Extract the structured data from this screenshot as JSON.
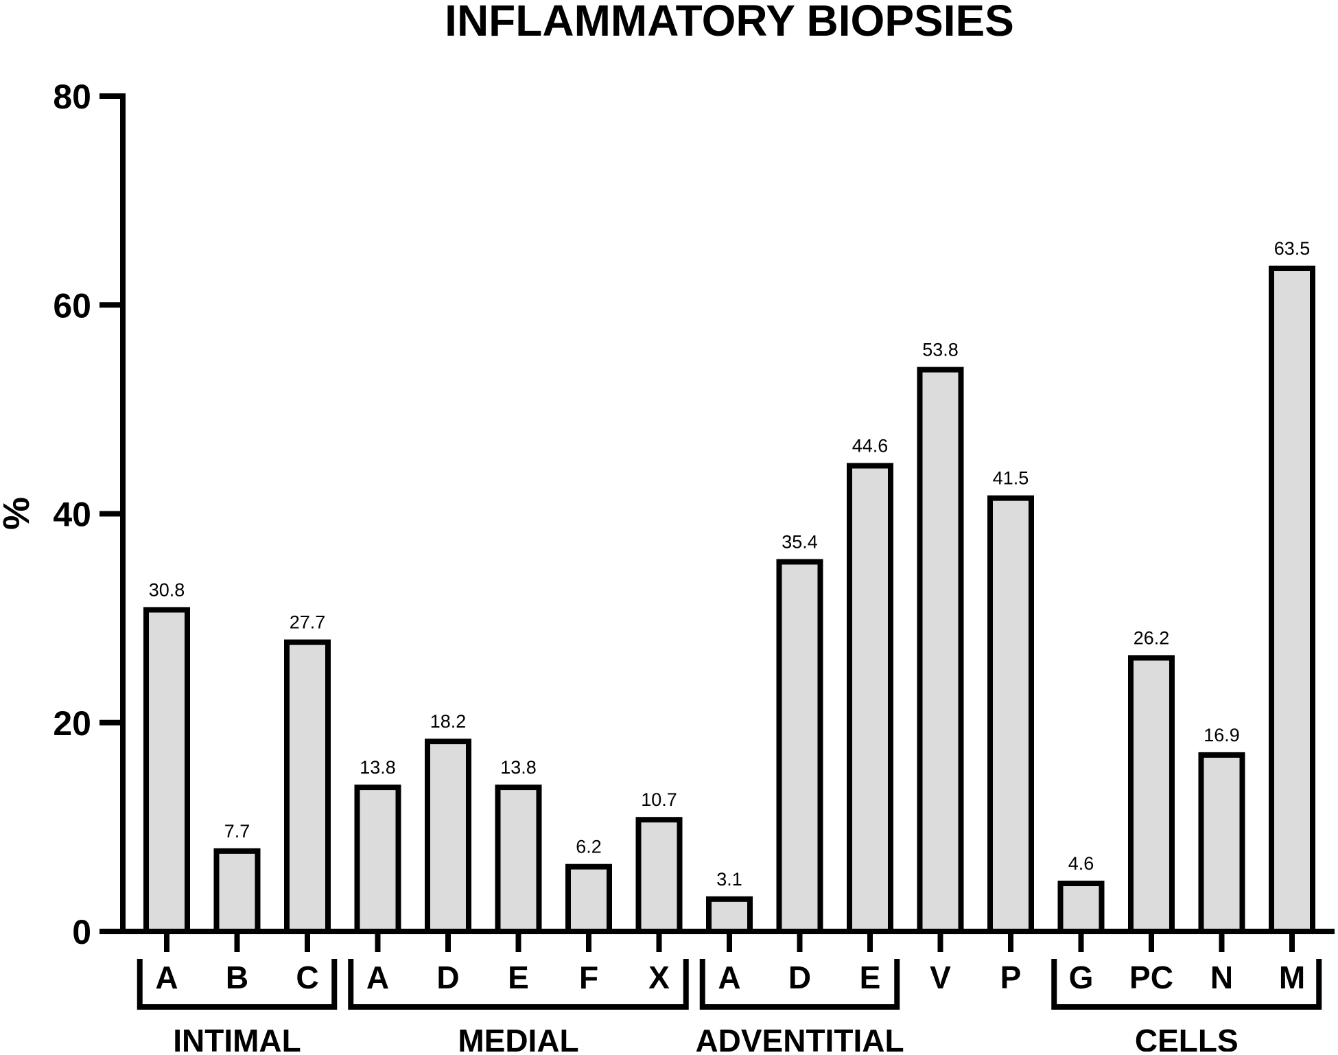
{
  "chart_data": {
    "type": "bar",
    "title": "INFLAMMATORY BIOPSIES",
    "xlabel": "",
    "ylabel": "%",
    "ylim": [
      0,
      80
    ],
    "yticks": [
      0,
      20,
      40,
      60,
      80
    ],
    "grid": false,
    "legend": "none",
    "bar_fill": "#dcdcdc",
    "bar_stroke": "#000000",
    "categories": [
      "A",
      "B",
      "C",
      "A",
      "D",
      "E",
      "F",
      "X",
      "A",
      "D",
      "E",
      "V",
      "P",
      "G",
      "PC",
      "N",
      "M"
    ],
    "values": [
      30.8,
      7.7,
      27.7,
      13.8,
      18.2,
      13.8,
      6.2,
      10.7,
      3.1,
      35.4,
      44.6,
      53.8,
      41.5,
      4.6,
      26.2,
      16.9,
      63.5
    ],
    "data_labels": [
      "30.8",
      "7.7",
      "27.7",
      "13.8",
      "18.2",
      "13.8",
      "6.2",
      "10.7",
      "3.1",
      "35.4",
      "44.6",
      "53.8",
      "41.5",
      "4.6",
      "26.2",
      "16.9",
      "63.5"
    ],
    "groups": [
      {
        "label": "INTIMAL",
        "from": 0,
        "to": 2
      },
      {
        "label": "MEDIAL",
        "from": 3,
        "to": 7
      },
      {
        "label": "ADVENTITIAL",
        "from": 8,
        "to": 10
      },
      {
        "label": "CELLS",
        "from": 13,
        "to": 16
      }
    ]
  }
}
